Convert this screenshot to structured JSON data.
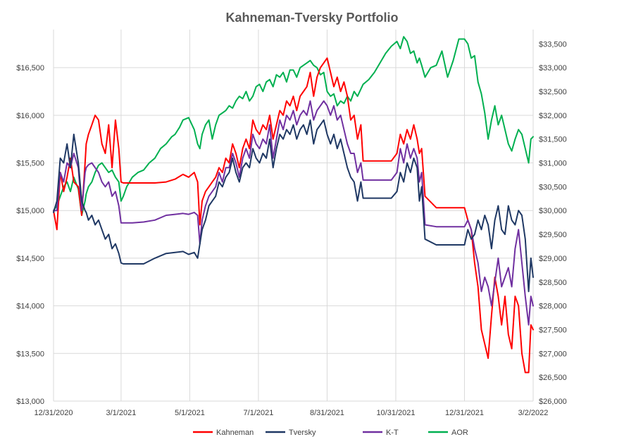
{
  "chart_data": {
    "type": "line",
    "title": "Kahneman-Tversky Portfolio",
    "x_tick_labels": [
      "12/31/2020",
      "3/1/2021",
      "5/1/2021",
      "7/1/2021",
      "8/31/2021",
      "10/31/2021",
      "12/31/2021",
      "3/2/2022"
    ],
    "x_tick_days": [
      0,
      60,
      121,
      182,
      243,
      304,
      365,
      426
    ],
    "x_range_days": [
      0,
      426
    ],
    "y_left": {
      "ticks": [
        "$13,000",
        "$13,500",
        "$14,000",
        "$14,500",
        "$15,000",
        "$15,500",
        "$16,000",
        "$16,500"
      ],
      "min": 13000,
      "max": 16900
    },
    "y_right": {
      "ticks": [
        "$26,000",
        "$26,500",
        "$27,000",
        "$27,500",
        "$28,000",
        "$28,500",
        "$29,000",
        "$29,500",
        "$30,000",
        "$30,500",
        "$31,000",
        "$31,500",
        "$32,000",
        "$32,500",
        "$33,000",
        "$33,500"
      ],
      "min": 26000,
      "max": 33800
    },
    "grid": true,
    "legend_position": "bottom",
    "colors": {
      "Kahneman": "#ff0000",
      "Tversky": "#1f3864",
      "K-T": "#7030a0",
      "AOR": "#00b050"
    },
    "series": [
      {
        "name": "Kahneman",
        "axis": "left",
        "x": [
          0,
          3,
          6,
          9,
          12,
          15,
          18,
          22,
          25,
          28,
          29,
          31,
          34,
          37,
          40,
          43,
          46,
          49,
          52,
          55,
          58,
          60,
          62,
          65,
          70,
          80,
          90,
          100,
          108,
          115,
          120,
          125,
          128,
          130,
          132,
          135,
          138,
          141,
          144,
          147,
          150,
          153,
          156,
          159,
          162,
          165,
          168,
          171,
          174,
          177,
          180,
          183,
          186,
          189,
          192,
          195,
          198,
          201,
          204,
          207,
          210,
          213,
          216,
          219,
          222,
          225,
          228,
          231,
          234,
          237,
          240,
          243,
          246,
          249,
          252,
          255,
          258,
          261,
          264,
          267,
          270,
          273,
          275,
          280,
          290,
          300,
          305,
          308,
          311,
          314,
          317,
          320,
          323,
          325,
          327,
          330,
          340,
          350,
          360,
          365,
          368,
          371,
          374,
          377,
          380,
          383,
          386,
          389,
          392,
          395,
          398,
          401,
          404,
          407,
          410,
          413,
          416,
          419,
          422,
          424,
          426
        ],
        "y": [
          15000,
          14800,
          15400,
          15200,
          15350,
          15550,
          15300,
          15250,
          14950,
          15500,
          15700,
          15800,
          15900,
          16000,
          15950,
          15700,
          15600,
          15900,
          15450,
          15950,
          15650,
          15300,
          15290,
          15290,
          15290,
          15290,
          15290,
          15300,
          15330,
          15380,
          15350,
          15400,
          15300,
          14850,
          15100,
          15200,
          15250,
          15300,
          15350,
          15450,
          15400,
          15550,
          15500,
          15700,
          15600,
          15450,
          15650,
          15750,
          15650,
          15950,
          15850,
          15800,
          15900,
          15850,
          16000,
          15750,
          15900,
          16050,
          16000,
          16150,
          16100,
          16200,
          16050,
          16200,
          16250,
          16300,
          16450,
          16200,
          16400,
          16500,
          16550,
          16600,
          16450,
          16300,
          16400,
          16250,
          16350,
          16200,
          15950,
          16000,
          15750,
          15900,
          15520,
          15520,
          15520,
          15520,
          15600,
          15800,
          15700,
          15850,
          15750,
          15900,
          15750,
          15600,
          15650,
          15150,
          15030,
          15030,
          15030,
          15030,
          14900,
          14800,
          14450,
          14200,
          13750,
          13600,
          13450,
          13900,
          14300,
          14100,
          13800,
          14100,
          13700,
          13550,
          14100,
          14000,
          13500,
          13300,
          13300,
          13800,
          13750
        ]
      },
      {
        "name": "Tversky",
        "axis": "left",
        "x": [
          0,
          3,
          6,
          9,
          12,
          15,
          18,
          22,
          25,
          28,
          29,
          31,
          34,
          37,
          40,
          43,
          46,
          49,
          52,
          55,
          58,
          60,
          62,
          65,
          70,
          80,
          90,
          100,
          108,
          115,
          120,
          125,
          128,
          130,
          132,
          135,
          138,
          141,
          144,
          147,
          150,
          153,
          156,
          159,
          162,
          165,
          168,
          171,
          174,
          177,
          180,
          183,
          186,
          189,
          192,
          195,
          198,
          201,
          204,
          207,
          210,
          213,
          216,
          219,
          222,
          225,
          228,
          231,
          234,
          237,
          240,
          243,
          246,
          249,
          252,
          255,
          258,
          261,
          264,
          267,
          270,
          273,
          275,
          280,
          290,
          300,
          305,
          308,
          311,
          314,
          317,
          320,
          323,
          325,
          327,
          330,
          340,
          350,
          360,
          365,
          368,
          371,
          374,
          377,
          380,
          383,
          386,
          389,
          392,
          395,
          398,
          401,
          404,
          407,
          410,
          413,
          416,
          419,
          422,
          424,
          426
        ],
        "y": [
          14980,
          15100,
          15550,
          15500,
          15700,
          15450,
          15800,
          15500,
          15100,
          15000,
          14980,
          14900,
          14950,
          14850,
          14900,
          14800,
          14700,
          14750,
          14600,
          14650,
          14550,
          14450,
          14440,
          14440,
          14440,
          14440,
          14500,
          14550,
          14560,
          14570,
          14540,
          14560,
          14500,
          14650,
          14800,
          14900,
          15050,
          15100,
          15150,
          15300,
          15250,
          15350,
          15400,
          15550,
          15400,
          15300,
          15450,
          15500,
          15450,
          15650,
          15550,
          15500,
          15600,
          15550,
          15750,
          15450,
          15650,
          15800,
          15750,
          15850,
          15800,
          15900,
          15750,
          15850,
          15900,
          15800,
          15950,
          15700,
          15850,
          15900,
          15950,
          15800,
          15700,
          15800,
          15650,
          15750,
          15600,
          15450,
          15350,
          15300,
          15100,
          15300,
          15130,
          15130,
          15130,
          15130,
          15200,
          15400,
          15300,
          15500,
          15400,
          15550,
          15450,
          15100,
          15250,
          14700,
          14640,
          14640,
          14640,
          14640,
          14800,
          14700,
          14750,
          14900,
          14800,
          14950,
          14850,
          14600,
          14900,
          15050,
          14800,
          14750,
          15050,
          14900,
          14850,
          15000,
          14950,
          14700,
          14150,
          14500,
          14300
        ]
      },
      {
        "name": "K-T",
        "axis": "left",
        "x": [
          0,
          3,
          6,
          9,
          12,
          15,
          18,
          22,
          25,
          28,
          29,
          31,
          34,
          37,
          40,
          43,
          46,
          49,
          52,
          55,
          58,
          60,
          62,
          65,
          70,
          80,
          90,
          100,
          108,
          115,
          120,
          125,
          128,
          130,
          132,
          135,
          138,
          141,
          144,
          147,
          150,
          153,
          156,
          159,
          162,
          165,
          168,
          171,
          174,
          177,
          180,
          183,
          186,
          189,
          192,
          195,
          198,
          201,
          204,
          207,
          210,
          213,
          216,
          219,
          222,
          225,
          228,
          231,
          234,
          237,
          240,
          243,
          246,
          249,
          252,
          255,
          258,
          261,
          264,
          267,
          270,
          273,
          275,
          280,
          290,
          300,
          305,
          308,
          311,
          314,
          317,
          320,
          323,
          325,
          327,
          330,
          340,
          350,
          360,
          365,
          368,
          371,
          374,
          377,
          380,
          383,
          386,
          389,
          392,
          395,
          398,
          401,
          404,
          407,
          410,
          413,
          416,
          419,
          422,
          424,
          426
        ],
        "y": [
          15000,
          15000,
          15400,
          15300,
          15500,
          15450,
          15600,
          15450,
          15000,
          15400,
          15450,
          15480,
          15500,
          15450,
          15400,
          15300,
          15250,
          15300,
          15150,
          15200,
          15050,
          14870,
          14870,
          14870,
          14870,
          14880,
          14900,
          14950,
          14960,
          14970,
          14960,
          14980,
          14950,
          14650,
          14900,
          15050,
          15150,
          15200,
          15250,
          15400,
          15300,
          15450,
          15450,
          15600,
          15500,
          15350,
          15550,
          15650,
          15550,
          15800,
          15700,
          15650,
          15750,
          15700,
          15900,
          15550,
          15750,
          15950,
          15850,
          16000,
          15950,
          16050,
          15900,
          16000,
          16050,
          16000,
          16150,
          15950,
          16050,
          16100,
          16150,
          16100,
          16000,
          16100,
          15950,
          16000,
          15850,
          15700,
          15600,
          15600,
          15400,
          15500,
          15320,
          15320,
          15320,
          15320,
          15400,
          15650,
          15500,
          15700,
          15550,
          15650,
          15550,
          15300,
          15400,
          14850,
          14830,
          14830,
          14830,
          14830,
          14900,
          14800,
          14600,
          14450,
          14150,
          14300,
          14200,
          14000,
          14250,
          14500,
          14200,
          14300,
          14400,
          14200,
          14600,
          14800,
          14450,
          14100,
          13800,
          14100,
          14000
        ]
      },
      {
        "name": "AOR",
        "axis": "right",
        "x": [
          0,
          3,
          6,
          9,
          12,
          15,
          18,
          22,
          25,
          28,
          29,
          31,
          34,
          37,
          40,
          43,
          46,
          49,
          52,
          55,
          58,
          60,
          62,
          65,
          70,
          75,
          80,
          85,
          90,
          95,
          100,
          105,
          108,
          112,
          115,
          120,
          125,
          128,
          130,
          132,
          135,
          138,
          141,
          144,
          147,
          150,
          153,
          156,
          159,
          162,
          165,
          168,
          171,
          174,
          177,
          180,
          183,
          186,
          189,
          192,
          195,
          198,
          201,
          204,
          207,
          210,
          213,
          216,
          219,
          222,
          225,
          228,
          231,
          234,
          237,
          240,
          243,
          246,
          249,
          252,
          255,
          258,
          261,
          264,
          267,
          270,
          273,
          275,
          280,
          285,
          290,
          295,
          300,
          305,
          308,
          311,
          314,
          317,
          320,
          323,
          325,
          327,
          330,
          335,
          340,
          345,
          350,
          355,
          360,
          365,
          368,
          371,
          374,
          377,
          380,
          383,
          386,
          389,
          392,
          395,
          398,
          401,
          404,
          407,
          410,
          413,
          416,
          419,
          422,
          424,
          426
        ],
        "y": [
          30000,
          30100,
          30300,
          30500,
          30600,
          30400,
          30700,
          30450,
          29900,
          30200,
          30350,
          30500,
          30600,
          30800,
          30950,
          31000,
          30900,
          30800,
          30850,
          30700,
          30600,
          30200,
          30300,
          30500,
          30700,
          30800,
          30850,
          31000,
          31100,
          31300,
          31400,
          31550,
          31600,
          31750,
          31900,
          31950,
          31700,
          31400,
          31300,
          31600,
          31800,
          31900,
          31500,
          31800,
          32000,
          32050,
          32100,
          32200,
          32150,
          32300,
          32400,
          32350,
          32500,
          32300,
          32400,
          32600,
          32650,
          32500,
          32700,
          32750,
          32600,
          32850,
          32800,
          32900,
          32700,
          32950,
          32950,
          32800,
          33000,
          33050,
          33100,
          33150,
          33050,
          33000,
          32850,
          32900,
          32500,
          32400,
          32450,
          32200,
          32300,
          32250,
          32400,
          32300,
          32500,
          32400,
          32550,
          32650,
          32750,
          32900,
          33100,
          33300,
          33450,
          33550,
          33400,
          33650,
          33550,
          33300,
          33350,
          33100,
          33200,
          33050,
          32800,
          33000,
          33050,
          33350,
          32800,
          33150,
          33600,
          33600,
          33500,
          33200,
          33250,
          32700,
          32450,
          32050,
          31500,
          31900,
          32200,
          31800,
          32000,
          31700,
          31400,
          31250,
          31500,
          31700,
          31600,
          31300,
          31000,
          31500,
          31550
        ]
      }
    ],
    "legend": [
      "Kahneman",
      "Tversky",
      "K-T",
      "AOR"
    ]
  }
}
